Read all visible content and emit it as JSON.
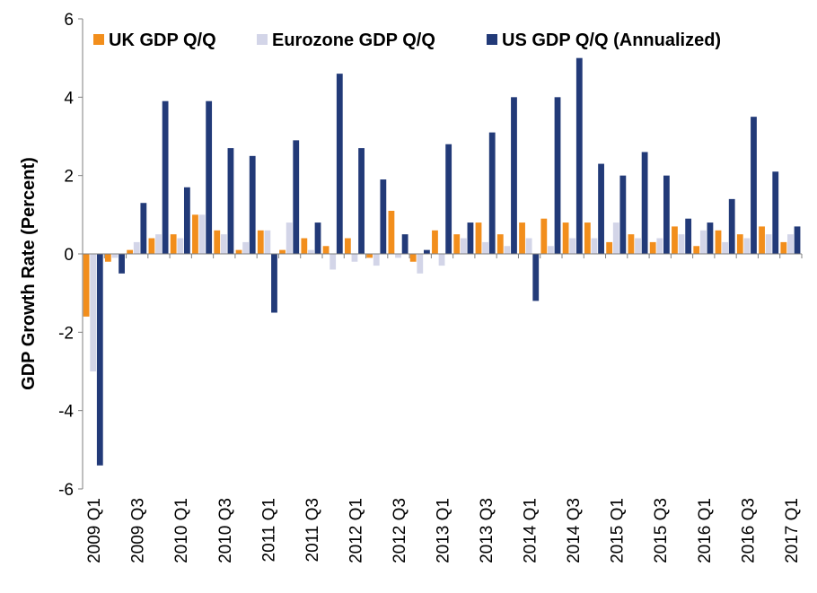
{
  "chart_data": {
    "type": "bar",
    "title": "",
    "xlabel": "",
    "ylabel": "GDP Growth Rate (Percent)",
    "ylim": [
      -6,
      6
    ],
    "y_ticks": [
      -6,
      -4,
      -2,
      0,
      2,
      4,
      6
    ],
    "grid": false,
    "legend_position": "top",
    "categories": [
      "2009 Q1",
      "2009 Q2",
      "2009 Q3",
      "2009 Q4",
      "2010 Q1",
      "2010 Q2",
      "2010 Q3",
      "2010 Q4",
      "2011 Q1",
      "2011 Q2",
      "2011 Q3",
      "2011 Q4",
      "2012 Q1",
      "2012 Q2",
      "2012 Q3",
      "2012 Q4",
      "2013 Q1",
      "2013 Q2",
      "2013 Q3",
      "2013 Q4",
      "2014 Q1",
      "2014 Q2",
      "2014 Q3",
      "2014 Q4",
      "2015 Q1",
      "2015 Q2",
      "2015 Q3",
      "2015 Q4",
      "2016 Q1",
      "2016 Q2",
      "2016 Q3",
      "2016 Q4",
      "2017 Q1"
    ],
    "x_tick_labels": [
      "2009 Q1",
      "",
      "2009 Q3",
      "",
      "2010 Q1",
      "",
      "2010 Q3",
      "",
      "2011 Q1",
      "",
      "2011 Q3",
      "",
      "2012 Q1",
      "",
      "2012 Q3",
      "",
      "2013 Q1",
      "",
      "2013 Q3",
      "",
      "2014 Q1",
      "",
      "2014 Q3",
      "",
      "2015 Q1",
      "",
      "2015 Q3",
      "",
      "2016 Q1",
      "",
      "2016 Q3",
      "",
      "2017 Q1"
    ],
    "series": [
      {
        "name": "UK GDP Q/Q",
        "color": "#F28E1C",
        "values": [
          -1.6,
          -0.2,
          0.1,
          0.4,
          0.5,
          1.0,
          0.6,
          0.1,
          0.6,
          0.1,
          0.4,
          0.2,
          0.4,
          -0.1,
          1.1,
          -0.2,
          0.6,
          0.5,
          0.8,
          0.5,
          0.8,
          0.9,
          0.8,
          0.8,
          0.3,
          0.5,
          0.3,
          0.7,
          0.2,
          0.6,
          0.5,
          0.7,
          0.3
        ]
      },
      {
        "name": "Eurozone GDP Q/Q",
        "color": "#D3D5E8",
        "values": [
          -3.0,
          -0.1,
          0.3,
          0.5,
          0.4,
          1.0,
          0.5,
          0.3,
          0.6,
          0.8,
          0.1,
          -0.4,
          -0.2,
          -0.3,
          -0.1,
          -0.5,
          -0.3,
          0.4,
          0.3,
          0.2,
          0.4,
          0.2,
          0.4,
          0.4,
          0.8,
          0.4,
          0.4,
          0.5,
          0.6,
          0.3,
          0.4,
          0.5,
          0.5
        ]
      },
      {
        "name": "US GDP Q/Q (Annualized)",
        "color": "#223A78",
        "values": [
          -5.4,
          -0.5,
          1.3,
          3.9,
          1.7,
          3.9,
          2.7,
          2.5,
          -1.5,
          2.9,
          0.8,
          4.6,
          2.7,
          1.9,
          0.5,
          0.1,
          2.8,
          0.8,
          3.1,
          4.0,
          -1.2,
          4.0,
          5.0,
          2.3,
          2.0,
          2.6,
          2.0,
          0.9,
          0.8,
          1.4,
          3.5,
          2.1,
          0.7
        ]
      }
    ]
  }
}
